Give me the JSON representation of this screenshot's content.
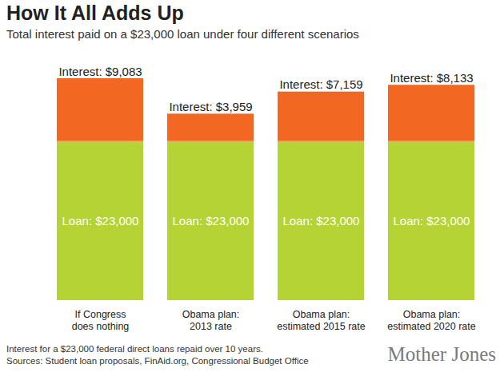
{
  "chart_data": {
    "type": "bar",
    "title": "How It All Adds Up",
    "subtitle": "Total interest paid on a $23,000 loan under four different scenarios",
    "categories": [
      "If Congress\ndoes nothing",
      "Obama plan:\n2013 rate",
      "Obama plan:\nestimated 2015 rate",
      "Obama plan:\nestimated 2020 rate"
    ],
    "series": [
      {
        "name": "Loan",
        "color": "#b5d334",
        "values": [
          23000,
          23000,
          23000,
          23000
        ],
        "value_labels": [
          "Loan: $23,000",
          "Loan: $23,000",
          "Loan: $23,000",
          "Loan: $23,000"
        ]
      },
      {
        "name": "Interest",
        "color": "#f26722",
        "values": [
          9083,
          3959,
          7159,
          8133
        ],
        "value_labels": [
          "Interest: $9,083",
          "Interest: $3,959",
          "Interest: $7,159",
          "Interest: $8,133"
        ]
      }
    ],
    "stacked": true,
    "data_labels": true,
    "tick_labels": "x",
    "ylim": [
      0,
      32083
    ],
    "notes": [
      "Interest for a $23,000 federal direct loans repaid over 10 years.",
      "Sources: Student loan proposals, FinAid.org, Congressional Budget Office"
    ],
    "credit": "Mother Jones"
  }
}
